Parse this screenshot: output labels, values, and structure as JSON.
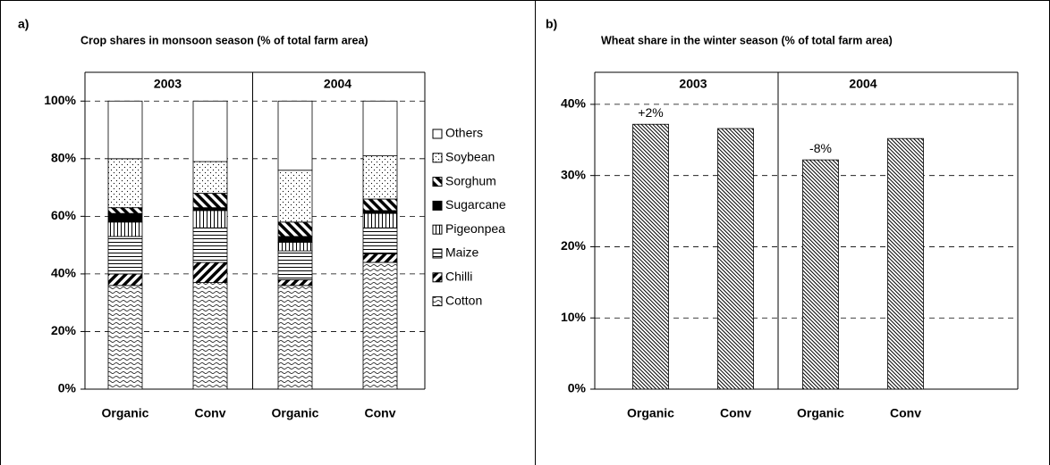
{
  "chart_data": [
    {
      "type": "stacked-bar",
      "panel": "a)",
      "title": "Crop shares in monsoon season (% of total farm area)",
      "categories": [
        "Organic",
        "Conv",
        "Organic",
        "Conv"
      ],
      "groups": [
        "2003",
        "2004"
      ],
      "series": [
        {
          "name": "Cotton",
          "pattern": "wave",
          "color": "#000000",
          "values": [
            36,
            37,
            36,
            44
          ]
        },
        {
          "name": "Chilli",
          "pattern": "thick-back",
          "color": "#000000",
          "values": [
            4,
            7,
            2,
            3
          ]
        },
        {
          "name": "Maize",
          "pattern": "hlines",
          "color": "#000000",
          "values": [
            13,
            12,
            10,
            9
          ]
        },
        {
          "name": "Pigeonpea",
          "pattern": "vlines",
          "color": "#000000",
          "values": [
            5,
            6,
            3,
            5
          ]
        },
        {
          "name": "Sugarcane",
          "pattern": "solid",
          "color": "#000000",
          "values": [
            3,
            1,
            2,
            1
          ]
        },
        {
          "name": "Sorghum",
          "pattern": "thick-fwd",
          "color": "#000000",
          "values": [
            2,
            5,
            5,
            4
          ]
        },
        {
          "name": "Soybean",
          "pattern": "dots",
          "color": "#000000",
          "values": [
            17,
            11,
            18,
            15
          ]
        },
        {
          "name": "Others",
          "pattern": "none",
          "color": "#ffffff",
          "values": [
            20,
            21,
            24,
            19
          ]
        }
      ],
      "ylim": [
        0,
        110
      ],
      "yticks": [
        {
          "value": 0,
          "label": "0%"
        },
        {
          "value": 20,
          "label": "20%"
        },
        {
          "value": 40,
          "label": "40%"
        },
        {
          "value": 60,
          "label": "60%"
        },
        {
          "value": 80,
          "label": "80%"
        },
        {
          "value": 100,
          "label": "100%"
        }
      ],
      "grid": true,
      "legend": "right"
    },
    {
      "type": "bar",
      "panel": "b)",
      "title": "Wheat share in the winter season (% of total farm area)",
      "categories": [
        "Organic",
        "Conv",
        "Organic",
        "Conv"
      ],
      "groups": [
        "2003",
        "2004"
      ],
      "values": [
        37.2,
        36.6,
        32.2,
        35.2
      ],
      "pattern": "hatch",
      "color": "#000000",
      "annotations": [
        "+2%",
        null,
        "-8%",
        null
      ],
      "ylim": [
        0,
        44.5
      ],
      "yticks": [
        {
          "value": 0,
          "label": "0%"
        },
        {
          "value": 10,
          "label": "10%"
        },
        {
          "value": 20,
          "label": "20%"
        },
        {
          "value": 30,
          "label": "30%"
        },
        {
          "value": 40,
          "label": "40%"
        }
      ],
      "grid": true
    }
  ]
}
